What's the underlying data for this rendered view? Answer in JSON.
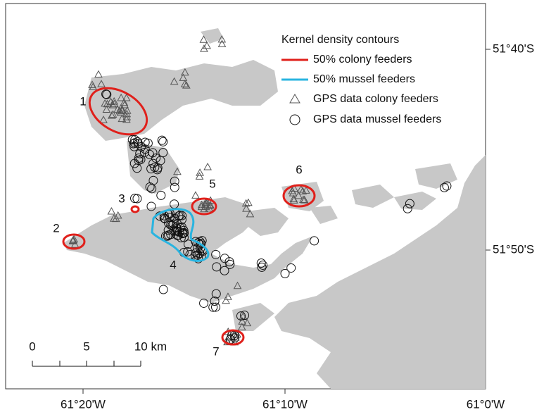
{
  "legend": {
    "title": "Kernel density contours",
    "items": [
      "50% colony feeders",
      "50% mussel feeders",
      "GPS data colony feeders",
      "GPS data mussel feeders"
    ]
  },
  "latitude_labels": [
    "51°40'S",
    "51°50'S"
  ],
  "longitude_labels": [
    "61°20'W",
    "61°10'W",
    "61°0'W"
  ],
  "scale_bar": {
    "labels": [
      "0",
      "5",
      "10 km"
    ]
  },
  "site_labels": [
    "1",
    "2",
    "3",
    "4",
    "5",
    "6",
    "7"
  ]
}
